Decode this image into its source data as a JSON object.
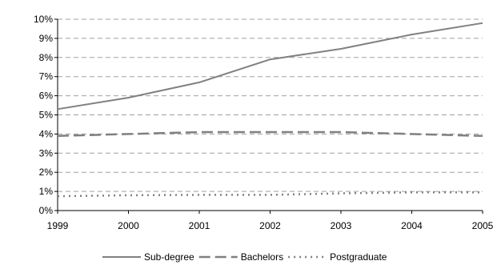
{
  "chart_data": {
    "type": "line",
    "title": "",
    "xlabel": "",
    "ylabel": "",
    "x": [
      "1999",
      "2000",
      "2001",
      "2002",
      "2003",
      "2004",
      "2005"
    ],
    "ylim": [
      0,
      10
    ],
    "y_ticks": [
      "0%",
      "1%",
      "2%",
      "3%",
      "4%",
      "5%",
      "6%",
      "7%",
      "8%",
      "9%",
      "10%"
    ],
    "y_unit": "%",
    "grid": "horizontal dashed",
    "legend_position": "bottom",
    "series": [
      {
        "name": "Sub-degree",
        "values": [
          5.3,
          5.9,
          6.7,
          7.9,
          8.45,
          9.2,
          9.8
        ],
        "color": "#808080",
        "style": "solid"
      },
      {
        "name": "Bachelors",
        "values": [
          3.9,
          4.0,
          4.1,
          4.1,
          4.1,
          4.0,
          3.9
        ],
        "color": "#808080",
        "style": "dashed"
      },
      {
        "name": "Postgraduate",
        "values": [
          0.75,
          0.8,
          0.82,
          0.82,
          0.9,
          0.95,
          0.95
        ],
        "color": "#808080",
        "style": "dotted"
      }
    ]
  }
}
